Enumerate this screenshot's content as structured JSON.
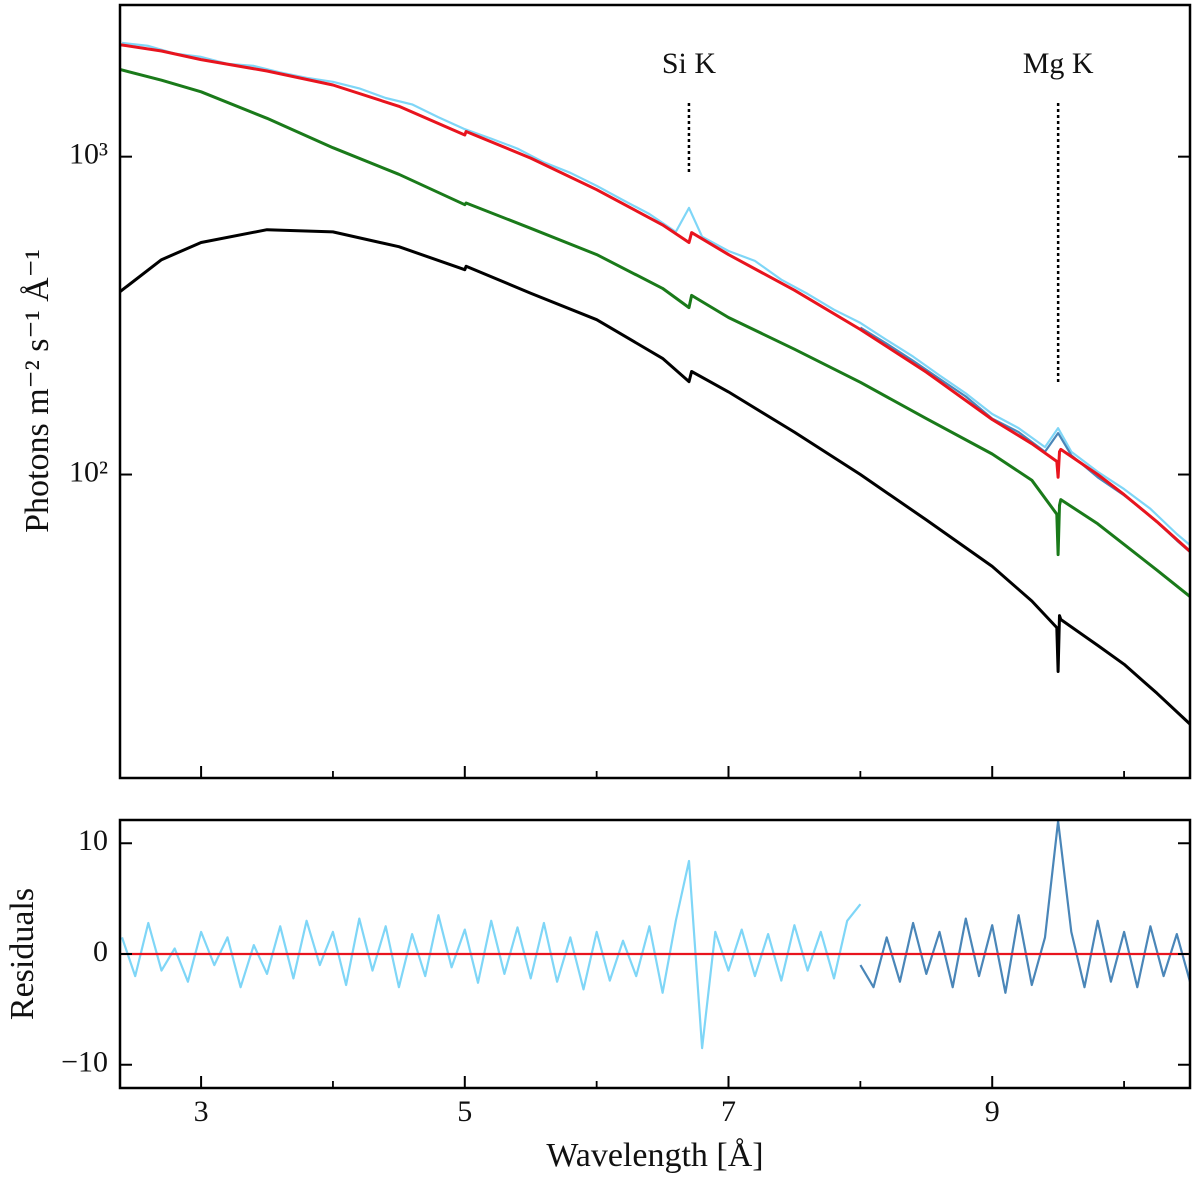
{
  "chart_data": [
    {
      "type": "line",
      "log_y": true,
      "ylabel": "Photons  m⁻² s⁻¹ Å⁻¹",
      "xlim": [
        2.385,
        10.5
      ],
      "ylim": [
        11.1,
        3000
      ],
      "yticks": [
        {
          "value": 100,
          "label": "10²"
        },
        {
          "value": 1000,
          "label": "10³"
        }
      ],
      "annotations": [
        {
          "text": "Si K",
          "x": 6.7
        },
        {
          "text": "Mg K",
          "x": 9.5
        }
      ],
      "series": [
        {
          "color": "#7fd6f7",
          "x": [
            2.4,
            2.6,
            2.8,
            3.0,
            3.2,
            3.4,
            3.6,
            3.8,
            4.0,
            4.2,
            4.4,
            4.6,
            4.8,
            5.0,
            5.2,
            5.4,
            5.6,
            5.8,
            6.0,
            6.2,
            6.4,
            6.6,
            6.7,
            6.8,
            7.0,
            7.2,
            7.4,
            7.6,
            7.8,
            8.0,
            8.2,
            8.4,
            8.6,
            8.8,
            9.0,
            9.2,
            9.4,
            9.5,
            9.6,
            9.8,
            10.0,
            10.2,
            10.4,
            10.5
          ],
          "values": [
            2280,
            2230,
            2110,
            2060,
            1960,
            1930,
            1840,
            1770,
            1720,
            1640,
            1530,
            1460,
            1330,
            1220,
            1140,
            1060,
            960,
            890,
            810,
            730,
            660,
            580,
            690,
            560,
            505,
            470,
            410,
            370,
            330,
            300,
            265,
            235,
            205,
            180,
            155,
            140,
            122,
            140,
            118,
            102,
            90,
            78,
            65,
            60
          ]
        },
        {
          "color": "#4a86b8",
          "x": [
            8.0,
            8.2,
            8.4,
            8.6,
            8.8,
            9.0,
            9.2,
            9.4,
            9.5,
            9.6,
            9.8,
            10.0,
            10.2,
            10.4,
            10.5
          ],
          "values": [
            290,
            258,
            228,
            200,
            176,
            150,
            136,
            118,
            135,
            115,
            98,
            86,
            74,
            62,
            57
          ]
        },
        {
          "color": "#e8141e",
          "x": [
            2.385,
            2.7,
            3,
            3.5,
            4,
            4.5,
            5,
            5.01,
            5.5,
            6,
            6.5,
            6.7,
            6.72,
            7,
            7.5,
            8,
            8.5,
            9,
            9.3,
            9.49,
            9.5,
            9.51,
            9.52,
            9.8,
            10,
            10.25,
            10.5
          ],
          "values": [
            2250,
            2150,
            2020,
            1860,
            1680,
            1440,
            1170,
            1200,
            990,
            787,
            610,
            537,
            577,
            492,
            380,
            286,
            210,
            149,
            125,
            110,
            98,
            118,
            120,
            100,
            86.5,
            71,
            57.3
          ]
        },
        {
          "color": "#1a7a1a",
          "x": [
            2.385,
            2.7,
            3,
            3.5,
            4,
            4.5,
            5,
            5.01,
            5.5,
            6,
            6.5,
            6.7,
            6.72,
            7,
            7.5,
            8,
            8.5,
            9,
            9.3,
            9.49,
            9.5,
            9.51,
            9.52,
            9.8,
            10,
            10.25,
            10.5
          ],
          "values": [
            1880,
            1740,
            1600,
            1320,
            1067,
            880,
            706,
            715,
            595,
            492,
            385,
            335,
            366,
            312,
            248,
            195,
            150,
            116,
            96,
            75,
            56,
            80,
            83.4,
            70,
            60.3,
            50,
            41.3
          ]
        },
        {
          "color": "#000000",
          "x": [
            2.385,
            2.7,
            3,
            3.5,
            4,
            4.5,
            5,
            5.01,
            5.5,
            6,
            6.5,
            6.7,
            6.72,
            7,
            7.5,
            8,
            8.5,
            9,
            9.3,
            9.49,
            9.5,
            9.51,
            9.52,
            9.8,
            10,
            10.25,
            10.5
          ],
          "values": [
            376,
            474,
            537,
            589,
            580,
            521,
            441,
            452,
            372,
            307,
            232,
            196,
            211,
            182,
            136,
            100,
            72,
            51.4,
            40,
            33,
            24,
            36,
            35,
            29,
            25.3,
            20.5,
            16.4
          ]
        }
      ]
    },
    {
      "type": "line",
      "ylabel": "Residuals",
      "xlabel": "Wavelength   [Å]",
      "xlim": [
        2.385,
        10.5
      ],
      "ylim": [
        -12.1,
        12.1
      ],
      "xticks": [
        3,
        5,
        7,
        9
      ],
      "xminor_ticks": [
        4,
        6,
        8,
        10
      ],
      "yticks": [
        {
          "value": -10,
          "label": "−10"
        },
        0,
        10
      ],
      "series": [
        {
          "color": "#7fd6f7",
          "x": [
            2.4,
            2.5,
            2.6,
            2.7,
            2.8,
            2.9,
            3.0,
            3.1,
            3.2,
            3.3,
            3.4,
            3.5,
            3.6,
            3.7,
            3.8,
            3.9,
            4.0,
            4.1,
            4.2,
            4.3,
            4.4,
            4.5,
            4.6,
            4.7,
            4.8,
            4.9,
            5.0,
            5.1,
            5.2,
            5.3,
            5.4,
            5.5,
            5.6,
            5.7,
            5.8,
            5.9,
            6.0,
            6.1,
            6.2,
            6.3,
            6.4,
            6.5,
            6.6,
            6.7,
            6.8,
            6.9,
            7.0,
            7.1,
            7.2,
            7.3,
            7.4,
            7.5,
            7.6,
            7.7,
            7.8,
            7.9,
            8.0
          ],
          "values": [
            1.5,
            -2,
            2.8,
            -1.5,
            0.5,
            -2.5,
            2,
            -1,
            1.5,
            -3,
            0.8,
            -1.8,
            2.5,
            -2.2,
            3,
            -1,
            2,
            -2.8,
            3.2,
            -1.5,
            2.5,
            -3,
            1.8,
            -2,
            3.5,
            -1.2,
            2.2,
            -2.6,
            3,
            -1.8,
            2.4,
            -2.2,
            2.8,
            -2.5,
            1.5,
            -3.2,
            2,
            -2.4,
            1.2,
            -2,
            2.5,
            -3.5,
            3,
            8.4,
            -8.5,
            2,
            -1.5,
            2.2,
            -2,
            1.8,
            -2.4,
            2.6,
            -1.5,
            2,
            -2.2,
            3,
            4.5
          ]
        },
        {
          "color": "#4a86b8",
          "x": [
            8.0,
            8.1,
            8.2,
            8.3,
            8.4,
            8.5,
            8.6,
            8.7,
            8.8,
            8.9,
            9.0,
            9.1,
            9.2,
            9.3,
            9.4,
            9.5,
            9.6,
            9.7,
            9.8,
            9.9,
            10.0,
            10.1,
            10.2,
            10.3,
            10.4,
            10.5
          ],
          "values": [
            -1,
            -3,
            1.5,
            -2.5,
            2.8,
            -1.8,
            2,
            -3,
            3.2,
            -2,
            2.6,
            -3.5,
            3.5,
            -2.8,
            1.5,
            12,
            2,
            -3,
            3,
            -2.5,
            2,
            -3,
            2.5,
            -2,
            1.8,
            -2.5
          ]
        },
        {
          "color": "#e8141e",
          "x": [
            2.385,
            10.5
          ],
          "values": [
            0,
            0
          ]
        }
      ]
    }
  ]
}
